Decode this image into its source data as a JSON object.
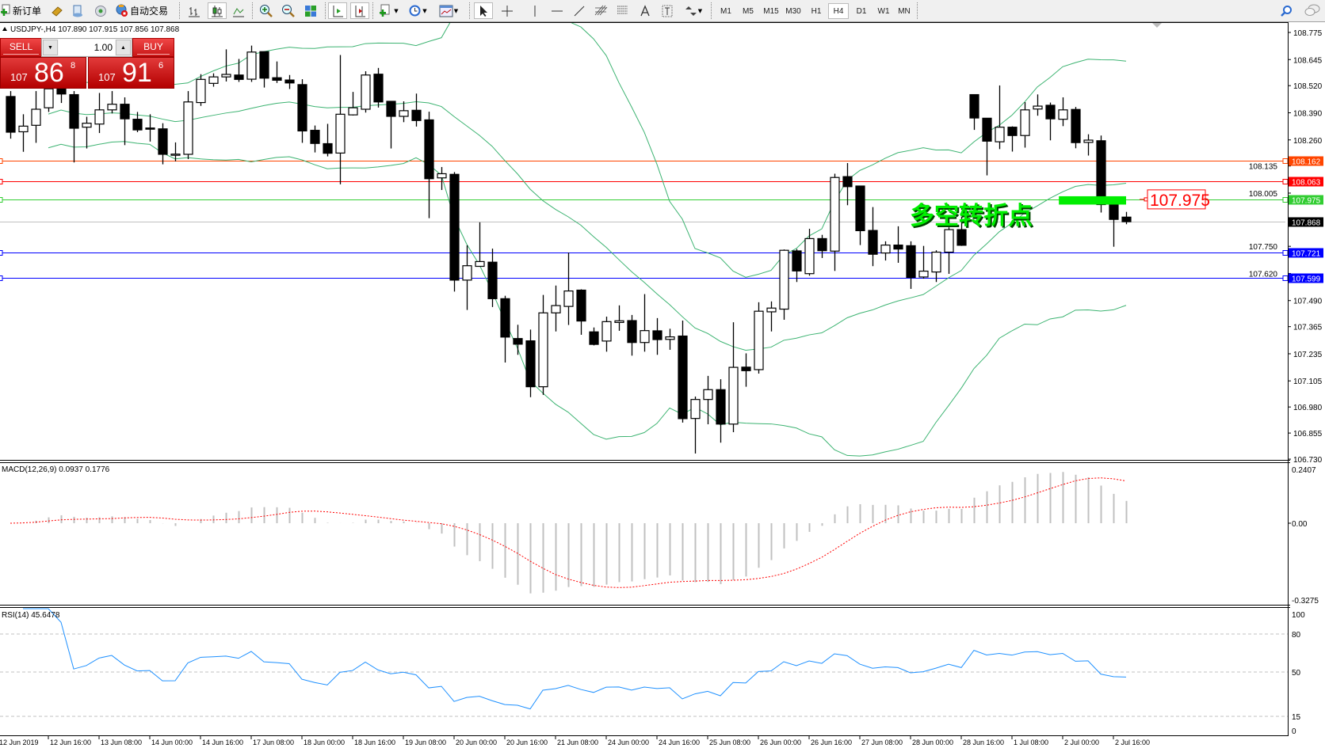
{
  "toolbar": {
    "new_order_label": "新订单",
    "auto_trading_label": "自动交易",
    "timeframes": [
      "M1",
      "M5",
      "M15",
      "M30",
      "H1",
      "H4",
      "D1",
      "W1",
      "MN"
    ],
    "active_timeframe": "H4",
    "icons": [
      "new-order-icon",
      "market-watch-icon",
      "history-icon",
      "signals-icon",
      "auto-trading-icon",
      "bar-chart-icon",
      "candlestick-icon",
      "line-chart-icon",
      "zoom-in-icon",
      "zoom-out-icon",
      "tile-windows-icon",
      "auto-scroll-icon",
      "chart-shift-icon",
      "indicators-icon",
      "periods-icon",
      "templates-icon",
      "cursor-icon",
      "crosshair-icon",
      "vertical-line-icon",
      "horizontal-line-icon",
      "trendline-icon",
      "fibonacci-icon",
      "channel-icon",
      "text-icon",
      "text-label-icon",
      "arrows-icon",
      "search-icon",
      "chat-icon"
    ]
  },
  "chart": {
    "header": "USDJPY-,H4  107.890 107.915 107.856 107.868",
    "colors": {
      "bands": "#3cb371",
      "bid_line": "#c0c0c0",
      "bull": "#ffffff",
      "bear": "#000000"
    }
  },
  "trade_panel": {
    "sell_label": "SELL",
    "buy_label": "BUY",
    "lot": "1.00",
    "sell_price": {
      "prefix": "107",
      "main": "86",
      "pip": "8"
    },
    "buy_price": {
      "prefix": "107",
      "main": "91",
      "pip": "6"
    }
  },
  "price_axis": {
    "ticks": [
      "108.775",
      "108.645",
      "108.520",
      "108.390",
      "108.260",
      "108.135",
      "108.005",
      "107.750",
      "107.620",
      "107.490",
      "107.365",
      "107.235",
      "107.105",
      "106.980",
      "106.855",
      "106.730"
    ]
  },
  "levels": [
    {
      "price": "108.162",
      "color": "#ff4500"
    },
    {
      "price": "108.063",
      "color": "#ff0000"
    },
    {
      "price": "107.975",
      "color": "#32cd32"
    },
    {
      "price": "107.868",
      "color": "#000000",
      "line_color": "#c0c0c0"
    },
    {
      "price": "107.721",
      "color": "#0000ff"
    },
    {
      "price": "107.599",
      "color": "#0000ff"
    }
  ],
  "annotation": {
    "text": "多空转折点",
    "text_color": "#00ee00",
    "price_label": "107.975",
    "label_color": "#ff0000",
    "zone_color": "#00ee00",
    "zone_prices": [
      107.95,
      107.99
    ]
  },
  "macd": {
    "label": "MACD(12,26,9) 0.0937 0.1776",
    "max": "0.2407",
    "zero": "0.00",
    "min": "-0.3275",
    "hist_color": "#c0c0c0",
    "signal_color": "#ff0000"
  },
  "rsi": {
    "label": "RSI(14) 45.6478",
    "levels": [
      "100",
      "80",
      "50",
      "15",
      "0"
    ],
    "line_color": "#1e90ff"
  },
  "time_axis": {
    "labels": [
      "12 Jun 2019",
      "12 Jun 16:00",
      "13 Jun 08:00",
      "14 Jun 00:00",
      "14 Jun 16:00",
      "17 Jun 08:00",
      "18 Jun 00:00",
      "18 Jun 16:00",
      "19 Jun 08:00",
      "20 Jun 00:00",
      "20 Jun 16:00",
      "21 Jun 08:00",
      "24 Jun 00:00",
      "24 Jun 16:00",
      "25 Jun 08:00",
      "26 Jun 00:00",
      "26 Jun 16:00",
      "27 Jun 08:00",
      "28 Jun 00:00",
      "28 Jun 16:00",
      "1 Jul 08:00",
      "2 Jul 00:00",
      "2 Jul 16:00"
    ]
  },
  "chart_data": {
    "type": "candlestick",
    "symbol": "USDJPY-",
    "timeframe": "H4",
    "ylim": [
      106.73,
      108.775
    ],
    "indicators": [
      "Bollinger Bands",
      "MACD(12,26,9)",
      "RSI(14)"
    ],
    "ohlc_fields": [
      "open",
      "high",
      "low",
      "close"
    ],
    "ohlc": [
      [
        108.468,
        108.494,
        108.266,
        108.297
      ],
      [
        108.299,
        108.383,
        108.203,
        108.326
      ],
      [
        108.33,
        108.494,
        108.246,
        108.407
      ],
      [
        108.414,
        108.535,
        108.394,
        108.505
      ],
      [
        108.531,
        108.582,
        108.437,
        108.48
      ],
      [
        108.477,
        108.494,
        108.152,
        108.316
      ],
      [
        108.321,
        108.371,
        108.219,
        108.34
      ],
      [
        108.336,
        108.485,
        108.293,
        108.404
      ],
      [
        108.404,
        108.494,
        108.387,
        108.431
      ],
      [
        108.431,
        108.464,
        108.235,
        108.361
      ],
      [
        108.359,
        108.394,
        108.297,
        108.308
      ],
      [
        108.317,
        108.383,
        108.252,
        108.312
      ],
      [
        108.313,
        108.34,
        108.143,
        108.191
      ],
      [
        108.192,
        108.248,
        108.157,
        108.192
      ],
      [
        108.191,
        108.494,
        108.168,
        108.442
      ],
      [
        108.439,
        108.575,
        108.423,
        108.55
      ],
      [
        108.531,
        108.579,
        108.515,
        108.562
      ],
      [
        108.562,
        108.694,
        108.54,
        108.574
      ],
      [
        108.571,
        108.648,
        108.538,
        108.55
      ],
      [
        108.551,
        108.712,
        108.538,
        108.681
      ],
      [
        108.683,
        108.683,
        108.511,
        108.556
      ],
      [
        108.558,
        108.636,
        108.533,
        108.546
      ],
      [
        108.547,
        108.571,
        108.504,
        108.533
      ],
      [
        108.525,
        108.551,
        108.246,
        108.303
      ],
      [
        108.306,
        108.329,
        108.2,
        108.243
      ],
      [
        108.242,
        108.337,
        108.181,
        108.196
      ],
      [
        108.197,
        108.667,
        108.047,
        108.383
      ],
      [
        108.38,
        108.49,
        108.377,
        108.414
      ],
      [
        108.407,
        108.589,
        108.391,
        108.571
      ],
      [
        108.575,
        108.605,
        108.415,
        108.442
      ],
      [
        108.445,
        108.445,
        108.219,
        108.373
      ],
      [
        108.373,
        108.445,
        108.345,
        108.4
      ],
      [
        108.402,
        108.482,
        108.324,
        108.353
      ],
      [
        108.356,
        108.395,
        107.885,
        108.074
      ],
      [
        108.078,
        108.13,
        108.02,
        108.098
      ],
      [
        108.095,
        108.106,
        107.533,
        107.588
      ],
      [
        107.588,
        107.755,
        107.445,
        107.657
      ],
      [
        107.654,
        107.865,
        107.654,
        107.677
      ],
      [
        107.674,
        107.739,
        107.459,
        107.499
      ],
      [
        107.499,
        107.513,
        107.193,
        107.315
      ],
      [
        107.308,
        107.374,
        107.23,
        107.281
      ],
      [
        107.297,
        107.351,
        107.027,
        107.077
      ],
      [
        107.077,
        107.517,
        107.038,
        107.431
      ],
      [
        107.431,
        107.562,
        107.342,
        107.466
      ],
      [
        107.462,
        107.72,
        107.373,
        107.536
      ],
      [
        107.54,
        107.544,
        107.326,
        107.392
      ],
      [
        107.34,
        107.361,
        107.275,
        107.28
      ],
      [
        107.296,
        107.413,
        107.245,
        107.389
      ],
      [
        107.385,
        107.467,
        107.345,
        107.393
      ],
      [
        107.394,
        107.421,
        107.226,
        107.289
      ],
      [
        107.289,
        107.521,
        107.245,
        107.346
      ],
      [
        107.345,
        107.406,
        107.23,
        107.303
      ],
      [
        107.304,
        107.355,
        107.254,
        107.316
      ],
      [
        107.32,
        107.394,
        106.905,
        106.924
      ],
      [
        106.925,
        107.03,
        106.757,
        107.016
      ],
      [
        107.016,
        107.129,
        106.897,
        107.063
      ],
      [
        107.063,
        107.113,
        106.809,
        106.898
      ],
      [
        106.898,
        107.386,
        106.859,
        107.17
      ],
      [
        107.171,
        107.237,
        107.077,
        107.154
      ],
      [
        107.159,
        107.482,
        107.14,
        107.439
      ],
      [
        107.436,
        107.486,
        107.342,
        107.454
      ],
      [
        107.449,
        107.735,
        107.398,
        107.731
      ],
      [
        107.728,
        107.737,
        107.579,
        107.632
      ],
      [
        107.619,
        107.834,
        107.609,
        107.787
      ],
      [
        107.787,
        107.805,
        107.694,
        107.729
      ],
      [
        107.727,
        108.098,
        107.632,
        108.08
      ],
      [
        108.084,
        108.149,
        107.947,
        108.036
      ],
      [
        108.039,
        108.039,
        107.756,
        107.825
      ],
      [
        107.826,
        107.938,
        107.655,
        107.712
      ],
      [
        107.718,
        107.774,
        107.682,
        107.756
      ],
      [
        107.756,
        107.846,
        107.671,
        107.737
      ],
      [
        107.753,
        107.774,
        107.546,
        107.601
      ],
      [
        107.603,
        107.752,
        107.595,
        107.631
      ],
      [
        107.627,
        107.731,
        107.579,
        107.722
      ],
      [
        107.722,
        107.841,
        107.618,
        107.83
      ],
      [
        107.83,
        107.892,
        107.752,
        107.755
      ],
      [
        108.477,
        108.477,
        108.308,
        108.365
      ],
      [
        108.364,
        108.364,
        108.09,
        108.254
      ],
      [
        108.251,
        108.521,
        108.216,
        108.321
      ],
      [
        108.321,
        108.325,
        108.204,
        108.281
      ],
      [
        108.281,
        108.441,
        108.223,
        108.404
      ],
      [
        108.408,
        108.478,
        108.376,
        108.422
      ],
      [
        108.426,
        108.439,
        108.258,
        108.361
      ],
      [
        108.359,
        108.464,
        108.326,
        108.404
      ],
      [
        108.406,
        108.418,
        108.22,
        108.247
      ],
      [
        108.248,
        108.287,
        108.185,
        108.259
      ],
      [
        108.256,
        108.281,
        107.912,
        107.95
      ],
      [
        107.95,
        107.95,
        107.748,
        107.879
      ],
      [
        107.89,
        107.915,
        107.856,
        107.868
      ]
    ]
  }
}
